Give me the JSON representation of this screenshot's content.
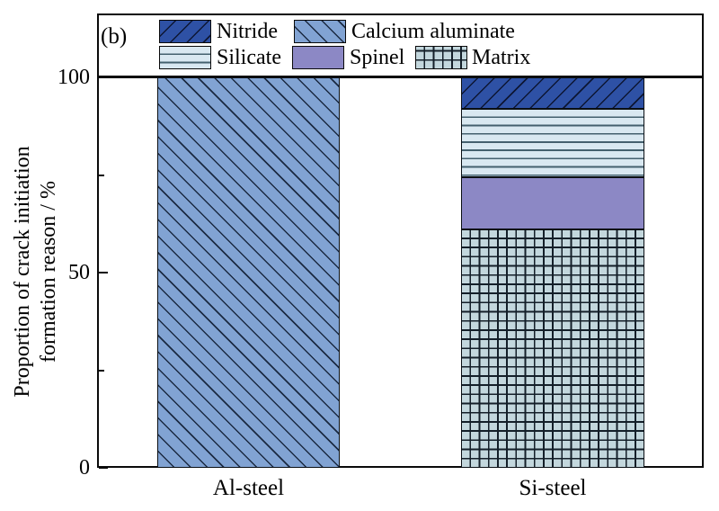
{
  "panel_label": "(b)",
  "legend": {
    "rows": [
      {
        "items": [
          {
            "label": "Nitride",
            "pattern": "nitride"
          },
          {
            "label": "Calcium aluminate",
            "pattern": "calcium-aluminate"
          }
        ]
      },
      {
        "items": [
          {
            "label": "Silicate",
            "pattern": "silicate"
          },
          {
            "label": "Spinel",
            "pattern": "spinel"
          },
          {
            "label": "Matrix",
            "pattern": "matrix"
          }
        ]
      }
    ]
  },
  "chart_data": {
    "type": "bar",
    "stacked": true,
    "categories": [
      "Al-steel",
      "Si-steel"
    ],
    "series": [
      {
        "name": "Matrix",
        "pattern": "matrix",
        "values": [
          0,
          61
        ]
      },
      {
        "name": "Spinel",
        "pattern": "spinel",
        "values": [
          0,
          13.5
        ]
      },
      {
        "name": "Calcium aluminate",
        "pattern": "calcium-aluminate",
        "values": [
          100,
          0
        ]
      },
      {
        "name": "Silicate",
        "pattern": "silicate",
        "values": [
          0,
          17.5
        ]
      },
      {
        "name": "Nitride",
        "pattern": "nitride",
        "values": [
          0,
          8
        ]
      }
    ],
    "ylabel_line1": "Proportion of crack initiation",
    "ylabel_line2": "formation reason / %",
    "ylim": [
      0,
      100
    ],
    "yticks_major": [
      0,
      50,
      100
    ],
    "yticks_minor": [
      25,
      75
    ],
    "grid": false,
    "legend_position": "top-inside",
    "colors": {
      "nitride": "#2E51A5",
      "calcium_aluminate": "#81A3D3",
      "silicate": "#D9E8F1",
      "spinel": "#8C88C5",
      "matrix": "#C3D7DD",
      "hatch_line": "#111827",
      "axis": "#0A0A0A"
    }
  }
}
